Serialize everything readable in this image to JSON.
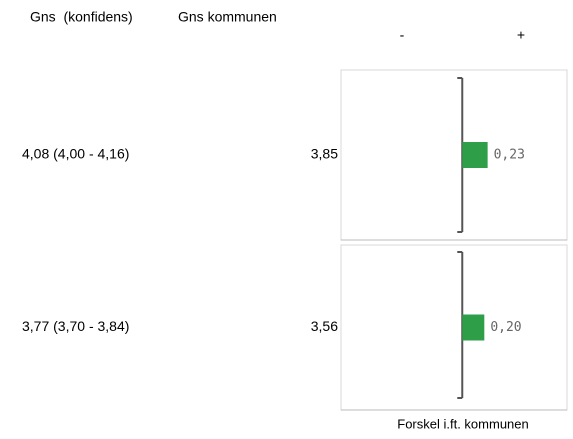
{
  "table": {
    "headers": [
      "Gns  (konfidens)",
      "Gns kommunen"
    ],
    "rows": [
      [
        "4,08 (4,00 - 4,16)",
        "3,85"
      ],
      [
        "3,77 (3,70 - 3,84)",
        "3,56"
      ]
    ]
  },
  "chart_data": {
    "type": "bar",
    "orientation": "horizontal",
    "negative_label": "-",
    "positive_label": "+",
    "x_label": "Forskel i.ft. kommunen",
    "values": [
      0.23,
      0.2
    ],
    "value_labels": [
      "0,23",
      "0,20"
    ],
    "color": "#2e9e48",
    "xlim": [
      -1.1,
      0.95
    ]
  }
}
